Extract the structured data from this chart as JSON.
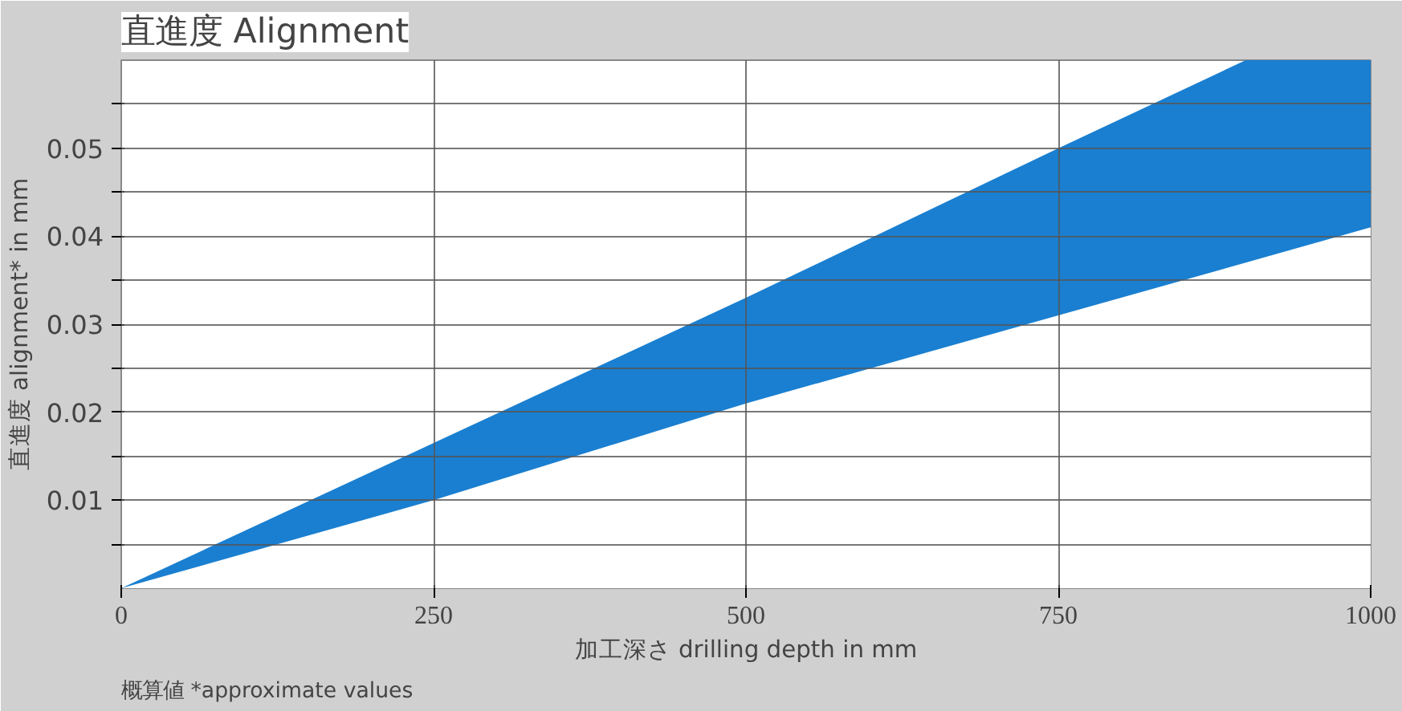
{
  "chart_data": {
    "type": "area",
    "title": "直進度 Alignment",
    "xlabel": "加工深さ drilling depth in mm",
    "ylabel": "直進度 alignment* in mm",
    "annotations": [
      "概算値 *approximate values"
    ],
    "series": [
      {
        "color": "#ffffff",
        "x": [
          0,
          250,
          500,
          750,
          900,
          1000
        ],
        "values": [
          0,
          0.01,
          0.021,
          0.031,
          0.037,
          0.041
        ]
      },
      {
        "color": "#1a7fd0",
        "x": [
          0,
          250,
          500,
          750,
          900,
          1000
        ],
        "values": [
          0,
          0.0065,
          0.012,
          0.019,
          0.023,
          0.019
        ]
      }
    ],
    "xlim": [
      0,
      1000
    ],
    "ylim": [
      0,
      0.06
    ],
    "xticks": [
      0,
      250,
      500,
      750,
      1000
    ],
    "yticks": [
      {
        "value": 0.005,
        "label": null
      },
      0.01,
      {
        "value": 0.015,
        "label": null
      },
      0.02,
      {
        "value": 0.025,
        "label": null
      },
      0.03,
      {
        "value": 0.035,
        "label": null
      },
      0.04,
      {
        "value": 0.045,
        "label": null
      },
      0.05,
      {
        "value": 0.055,
        "label": null
      }
    ],
    "stacked": true,
    "grid": true
  }
}
